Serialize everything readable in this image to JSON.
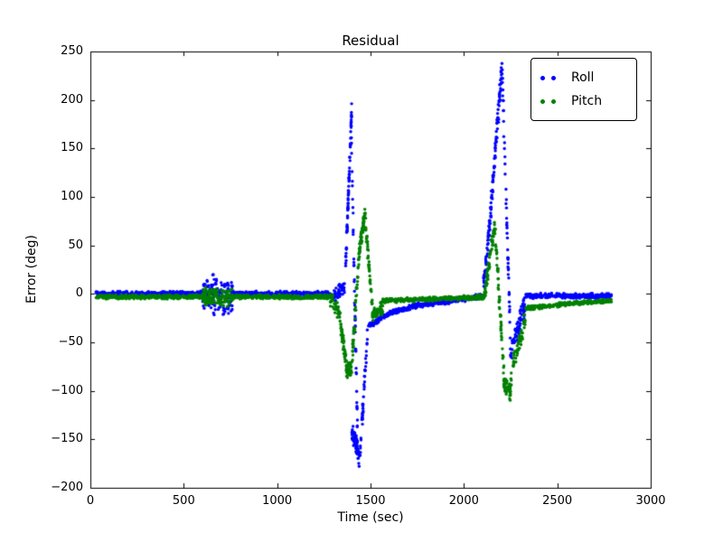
{
  "chart_data": {
    "type": "scatter",
    "title": "Residual",
    "xlabel": "Time (sec)",
    "ylabel": "Error (deg)",
    "xlim": [
      0,
      3000
    ],
    "ylim": [
      -200,
      250
    ],
    "xticks": [
      0,
      500,
      1000,
      1500,
      2000,
      2500,
      3000
    ],
    "yticks": [
      -200,
      -150,
      -100,
      -50,
      0,
      50,
      100,
      150,
      200,
      250
    ],
    "grid": false,
    "background_color": "#ffffff",
    "axis_color": "#000000",
    "legend": {
      "position": "upper right",
      "entries": [
        {
          "label": "Roll",
          "color": "#0000ff"
        },
        {
          "label": "Pitch",
          "color": "#008000"
        }
      ]
    },
    "series": [
      {
        "name": "Roll",
        "color": "#0000ff",
        "marker": "dot",
        "segments_note": "piecewise clusters: [t_start, t_end, y_start, y_end, noise_amplitude, n_points]",
        "segments": [
          [
            30,
            600,
            0,
            0,
            3,
            380
          ],
          [
            600,
            660,
            0,
            0,
            16,
            60
          ],
          [
            655,
            760,
            0,
            -2,
            26,
            110
          ],
          [
            760,
            1290,
            0,
            0,
            3,
            360
          ],
          [
            1290,
            1365,
            -4,
            5,
            10,
            50
          ],
          [
            1365,
            1400,
            20,
            195,
            10,
            70
          ],
          [
            1395,
            1430,
            180,
            -140,
            14,
            45
          ],
          [
            1400,
            1445,
            -140,
            -172,
            12,
            60
          ],
          [
            1445,
            1485,
            -160,
            -40,
            12,
            40
          ],
          [
            1485,
            1600,
            -34,
            -20,
            3,
            90
          ],
          [
            1600,
            1750,
            -20,
            -12,
            3,
            100
          ],
          [
            1750,
            2050,
            -12,
            -4,
            3,
            170
          ],
          [
            2050,
            2105,
            -4,
            -2,
            3,
            40
          ],
          [
            2105,
            2145,
            5,
            85,
            12,
            60
          ],
          [
            2145,
            2205,
            90,
            238,
            14,
            80
          ],
          [
            2205,
            2250,
            230,
            -55,
            16,
            50
          ],
          [
            2250,
            2330,
            -60,
            -8,
            14,
            70
          ],
          [
            2330,
            2790,
            -2,
            -2,
            3,
            300
          ]
        ]
      },
      {
        "name": "Pitch",
        "color": "#008000",
        "marker": "dot",
        "segments_note": "piecewise clusters: [t_start, t_end, y_start, y_end, noise_amplitude, n_points]",
        "segments": [
          [
            30,
            600,
            -3,
            -3,
            2.5,
            380
          ],
          [
            600,
            760,
            -3,
            -4,
            11,
            140
          ],
          [
            760,
            1285,
            -3,
            -3,
            2.5,
            340
          ],
          [
            1285,
            1335,
            -4,
            -20,
            9,
            40
          ],
          [
            1335,
            1375,
            -25,
            -80,
            10,
            55
          ],
          [
            1370,
            1400,
            -80,
            -78,
            9,
            40
          ],
          [
            1400,
            1435,
            -70,
            30,
            12,
            45
          ],
          [
            1435,
            1470,
            35,
            85,
            10,
            60
          ],
          [
            1470,
            1510,
            80,
            -15,
            10,
            45
          ],
          [
            1510,
            1565,
            -22,
            -14,
            8,
            60
          ],
          [
            1565,
            2050,
            -7,
            -4,
            2.5,
            300
          ],
          [
            2050,
            2110,
            -4,
            -3,
            3,
            40
          ],
          [
            2110,
            2165,
            0,
            72,
            11,
            70
          ],
          [
            2165,
            2215,
            70,
            -88,
            13,
            55
          ],
          [
            2215,
            2250,
            -92,
            -102,
            9,
            45
          ],
          [
            2250,
            2330,
            -85,
            -25,
            13,
            60
          ],
          [
            2330,
            2560,
            -15,
            -10,
            2.5,
            150
          ],
          [
            2560,
            2790,
            -10,
            -7,
            2.5,
            150
          ]
        ]
      }
    ]
  }
}
